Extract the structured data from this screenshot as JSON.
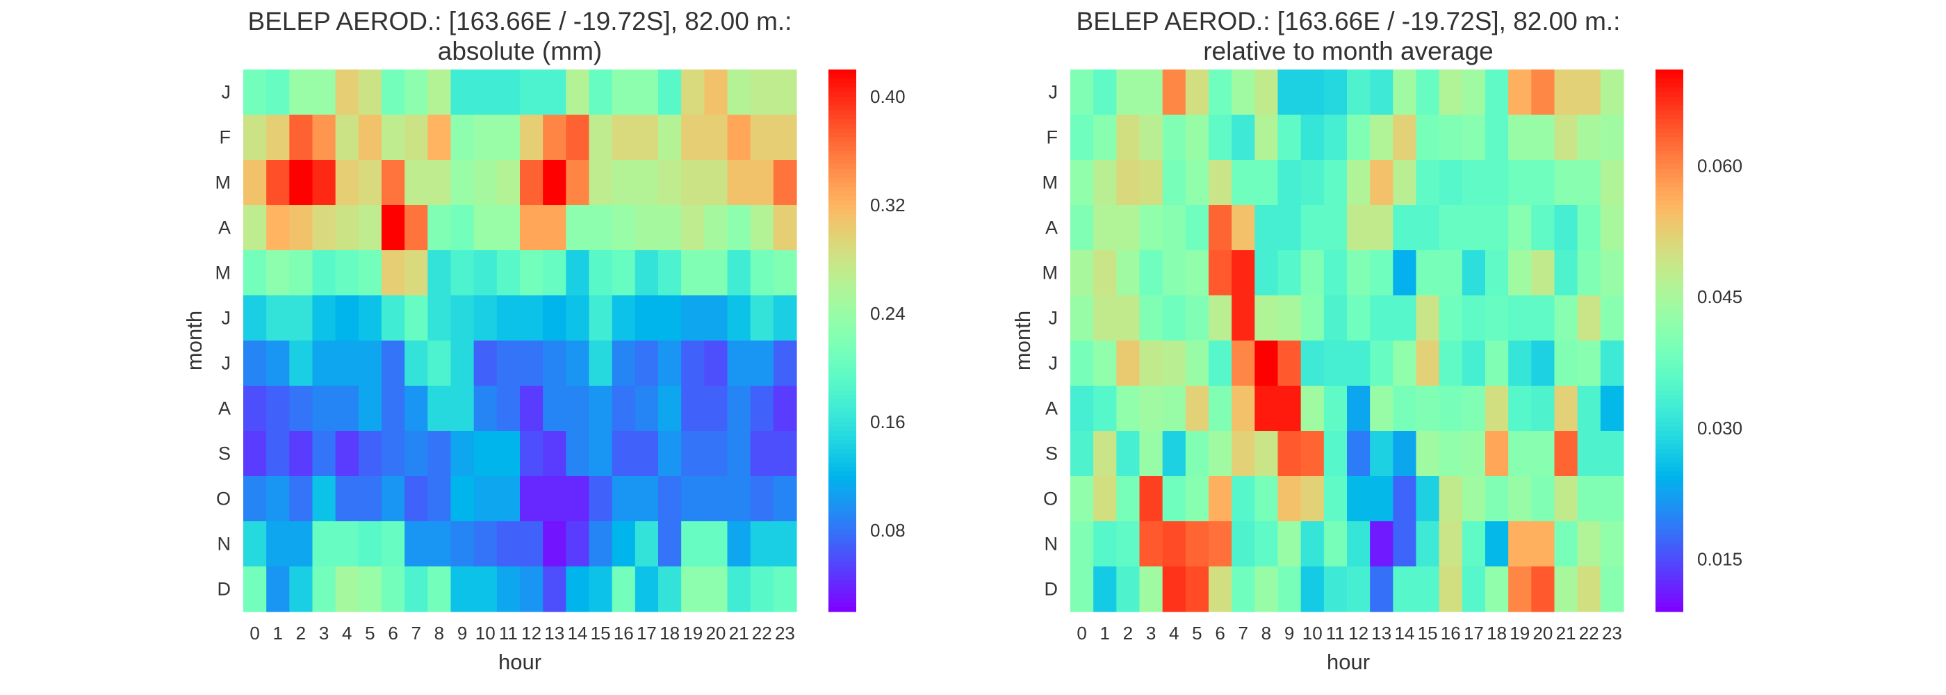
{
  "chart_data": [
    {
      "type": "heatmap",
      "title_line1": "BELEP AEROD.: [163.66E / -19.72S], 82.00 m.:",
      "title_line2": "absolute (mm)",
      "xlabel": "hour",
      "ylabel": "month",
      "x": [
        "0",
        "1",
        "2",
        "3",
        "4",
        "5",
        "6",
        "7",
        "8",
        "9",
        "10",
        "11",
        "12",
        "13",
        "14",
        "15",
        "16",
        "17",
        "18",
        "19",
        "20",
        "21",
        "22",
        "23"
      ],
      "y": [
        "J",
        "F",
        "M",
        "A",
        "M",
        "J",
        "J",
        "A",
        "S",
        "O",
        "N",
        "D"
      ],
      "vmin": 0.02,
      "vmax": 0.42,
      "colorbar_ticks": [
        "0.08",
        "0.16",
        "0.24",
        "0.32",
        "0.40"
      ],
      "values": [
        [
          0.21,
          0.2,
          0.24,
          0.24,
          0.3,
          0.28,
          0.21,
          0.23,
          0.26,
          0.17,
          0.17,
          0.17,
          0.18,
          0.18,
          0.26,
          0.2,
          0.23,
          0.23,
          0.19,
          0.29,
          0.31,
          0.26,
          0.27,
          0.27
        ],
        [
          0.28,
          0.3,
          0.37,
          0.34,
          0.28,
          0.31,
          0.27,
          0.28,
          0.32,
          0.23,
          0.24,
          0.24,
          0.3,
          0.35,
          0.37,
          0.27,
          0.29,
          0.29,
          0.26,
          0.3,
          0.3,
          0.33,
          0.3,
          0.3
        ],
        [
          0.31,
          0.38,
          0.42,
          0.4,
          0.3,
          0.29,
          0.36,
          0.27,
          0.27,
          0.24,
          0.25,
          0.26,
          0.37,
          0.42,
          0.35,
          0.27,
          0.26,
          0.26,
          0.27,
          0.28,
          0.28,
          0.31,
          0.31,
          0.36
        ],
        [
          0.27,
          0.32,
          0.31,
          0.29,
          0.28,
          0.27,
          0.42,
          0.36,
          0.22,
          0.21,
          0.24,
          0.24,
          0.33,
          0.33,
          0.23,
          0.23,
          0.24,
          0.25,
          0.25,
          0.27,
          0.25,
          0.23,
          0.26,
          0.3
        ],
        [
          0.21,
          0.23,
          0.22,
          0.19,
          0.2,
          0.21,
          0.3,
          0.29,
          0.16,
          0.18,
          0.17,
          0.19,
          0.21,
          0.2,
          0.14,
          0.19,
          0.2,
          0.16,
          0.18,
          0.22,
          0.22,
          0.17,
          0.21,
          0.22
        ],
        [
          0.14,
          0.16,
          0.16,
          0.13,
          0.12,
          0.13,
          0.17,
          0.2,
          0.16,
          0.15,
          0.14,
          0.13,
          0.13,
          0.12,
          0.13,
          0.17,
          0.13,
          0.12,
          0.12,
          0.11,
          0.11,
          0.13,
          0.16,
          0.14
        ],
        [
          0.09,
          0.1,
          0.14,
          0.11,
          0.11,
          0.11,
          0.08,
          0.16,
          0.18,
          0.15,
          0.07,
          0.08,
          0.08,
          0.09,
          0.1,
          0.15,
          0.09,
          0.08,
          0.1,
          0.07,
          0.06,
          0.1,
          0.1,
          0.07
        ],
        [
          0.06,
          0.07,
          0.08,
          0.09,
          0.09,
          0.11,
          0.08,
          0.1,
          0.15,
          0.15,
          0.09,
          0.08,
          0.05,
          0.09,
          0.09,
          0.1,
          0.08,
          0.09,
          0.11,
          0.07,
          0.07,
          0.09,
          0.07,
          0.05
        ],
        [
          0.05,
          0.07,
          0.05,
          0.08,
          0.05,
          0.07,
          0.08,
          0.09,
          0.08,
          0.11,
          0.12,
          0.12,
          0.06,
          0.05,
          0.09,
          0.1,
          0.07,
          0.07,
          0.1,
          0.08,
          0.08,
          0.09,
          0.06,
          0.06
        ],
        [
          0.09,
          0.1,
          0.08,
          0.13,
          0.08,
          0.08,
          0.1,
          0.07,
          0.08,
          0.12,
          0.11,
          0.11,
          0.04,
          0.04,
          0.04,
          0.07,
          0.1,
          0.1,
          0.08,
          0.09,
          0.09,
          0.09,
          0.08,
          0.09
        ],
        [
          0.15,
          0.11,
          0.11,
          0.2,
          0.2,
          0.19,
          0.2,
          0.1,
          0.1,
          0.09,
          0.08,
          0.07,
          0.07,
          0.03,
          0.05,
          0.09,
          0.12,
          0.16,
          0.08,
          0.2,
          0.2,
          0.11,
          0.14,
          0.14
        ],
        [
          0.21,
          0.1,
          0.14,
          0.21,
          0.25,
          0.24,
          0.21,
          0.18,
          0.21,
          0.13,
          0.13,
          0.11,
          0.1,
          0.06,
          0.12,
          0.13,
          0.21,
          0.13,
          0.16,
          0.23,
          0.23,
          0.17,
          0.19,
          0.2
        ]
      ]
    },
    {
      "type": "heatmap",
      "title_line1": "BELEP AEROD.: [163.66E / -19.72S], 82.00 m.:",
      "title_line2": "relative to month average",
      "xlabel": "hour",
      "ylabel": "month",
      "x": [
        "0",
        "1",
        "2",
        "3",
        "4",
        "5",
        "6",
        "7",
        "8",
        "9",
        "10",
        "11",
        "12",
        "13",
        "14",
        "15",
        "16",
        "17",
        "18",
        "19",
        "20",
        "21",
        "22",
        "23"
      ],
      "y": [
        "J",
        "F",
        "M",
        "A",
        "M",
        "J",
        "J",
        "A",
        "S",
        "O",
        "N",
        "D"
      ],
      "vmin": 0.009,
      "vmax": 0.071,
      "colorbar_ticks": [
        "0.015",
        "0.030",
        "0.045",
        "0.060"
      ],
      "values": [
        [
          0.04,
          0.036,
          0.044,
          0.044,
          0.06,
          0.05,
          0.038,
          0.044,
          0.048,
          0.028,
          0.028,
          0.029,
          0.034,
          0.032,
          0.044,
          0.037,
          0.046,
          0.044,
          0.036,
          0.056,
          0.06,
          0.052,
          0.052,
          0.046
        ],
        [
          0.038,
          0.041,
          0.05,
          0.047,
          0.04,
          0.043,
          0.036,
          0.032,
          0.046,
          0.036,
          0.031,
          0.033,
          0.04,
          0.046,
          0.052,
          0.039,
          0.04,
          0.041,
          0.036,
          0.043,
          0.043,
          0.049,
          0.045,
          0.044
        ],
        [
          0.042,
          0.047,
          0.051,
          0.05,
          0.039,
          0.042,
          0.049,
          0.038,
          0.038,
          0.033,
          0.034,
          0.036,
          0.046,
          0.054,
          0.047,
          0.036,
          0.035,
          0.036,
          0.036,
          0.038,
          0.038,
          0.041,
          0.041,
          0.046
        ],
        [
          0.04,
          0.046,
          0.046,
          0.042,
          0.041,
          0.038,
          0.063,
          0.054,
          0.033,
          0.033,
          0.036,
          0.036,
          0.048,
          0.048,
          0.035,
          0.035,
          0.037,
          0.037,
          0.037,
          0.041,
          0.036,
          0.033,
          0.039,
          0.045
        ],
        [
          0.045,
          0.049,
          0.044,
          0.038,
          0.041,
          0.042,
          0.064,
          0.068,
          0.033,
          0.035,
          0.04,
          0.035,
          0.04,
          0.038,
          0.024,
          0.039,
          0.039,
          0.03,
          0.036,
          0.044,
          0.048,
          0.034,
          0.04,
          0.043
        ],
        [
          0.043,
          0.048,
          0.048,
          0.04,
          0.038,
          0.04,
          0.047,
          0.068,
          0.046,
          0.045,
          0.041,
          0.034,
          0.038,
          0.035,
          0.035,
          0.049,
          0.038,
          0.036,
          0.037,
          0.036,
          0.036,
          0.041,
          0.049,
          0.041
        ],
        [
          0.039,
          0.042,
          0.053,
          0.048,
          0.047,
          0.043,
          0.035,
          0.06,
          0.071,
          0.064,
          0.032,
          0.033,
          0.033,
          0.037,
          0.042,
          0.052,
          0.036,
          0.033,
          0.04,
          0.031,
          0.028,
          0.04,
          0.041,
          0.032
        ],
        [
          0.033,
          0.035,
          0.042,
          0.044,
          0.043,
          0.052,
          0.04,
          0.054,
          0.069,
          0.069,
          0.044,
          0.036,
          0.023,
          0.043,
          0.039,
          0.04,
          0.039,
          0.04,
          0.05,
          0.035,
          0.034,
          0.052,
          0.034,
          0.025
        ],
        [
          0.034,
          0.049,
          0.033,
          0.043,
          0.028,
          0.04,
          0.044,
          0.052,
          0.049,
          0.064,
          0.063,
          0.035,
          0.019,
          0.028,
          0.023,
          0.044,
          0.042,
          0.043,
          0.057,
          0.041,
          0.041,
          0.063,
          0.034,
          0.034
        ],
        [
          0.042,
          0.05,
          0.039,
          0.066,
          0.038,
          0.041,
          0.056,
          0.035,
          0.039,
          0.054,
          0.052,
          0.036,
          0.025,
          0.025,
          0.017,
          0.028,
          0.048,
          0.044,
          0.04,
          0.043,
          0.04,
          0.048,
          0.04,
          0.04
        ],
        [
          0.04,
          0.035,
          0.036,
          0.064,
          0.065,
          0.063,
          0.062,
          0.034,
          0.036,
          0.043,
          0.031,
          0.039,
          0.031,
          0.011,
          0.017,
          0.032,
          0.049,
          0.036,
          0.025,
          0.056,
          0.056,
          0.039,
          0.046,
          0.042
        ],
        [
          0.04,
          0.027,
          0.034,
          0.044,
          0.067,
          0.065,
          0.05,
          0.038,
          0.043,
          0.039,
          0.027,
          0.032,
          0.033,
          0.018,
          0.035,
          0.035,
          0.05,
          0.035,
          0.042,
          0.06,
          0.064,
          0.045,
          0.05,
          0.041
        ]
      ]
    }
  ]
}
